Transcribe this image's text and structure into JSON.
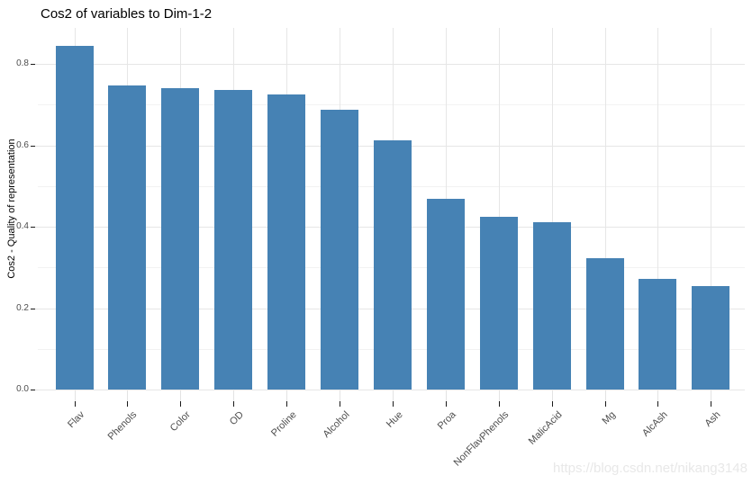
{
  "watermark": "https://blog.csdn.net/nikang3148",
  "chart_data": {
    "type": "bar",
    "title": "Cos2 of variables to Dim-1-2",
    "categories": [
      "Flav",
      "Phenols",
      "Color",
      "OD",
      "Proline",
      "Alcohol",
      "Hue",
      "Proa",
      "NonFlavPhenols",
      "MalicAcid",
      "Mg",
      "AlcAsh",
      "Ash"
    ],
    "values": [
      0.844,
      0.748,
      0.74,
      0.735,
      0.724,
      0.687,
      0.613,
      0.468,
      0.424,
      0.411,
      0.323,
      0.272,
      0.254
    ],
    "xlabel": "",
    "ylabel": "Cos2 - Quality of representation",
    "ylim": [
      0,
      0.888
    ],
    "ytick_values": [
      0.0,
      0.2,
      0.4,
      0.6,
      0.8
    ],
    "ytick_labels": [
      "0.0",
      "0.2",
      "0.4",
      "0.6",
      "0.8"
    ],
    "minor_gridlines": [
      0.1,
      0.3,
      0.5,
      0.7
    ],
    "grid": "horizontal major+minor, vertical major at each category",
    "legend": "none",
    "bar_orientation": "vertical",
    "x_label_rotation_deg": 45
  },
  "colors": {
    "bar_fill": "#4682B4",
    "grid_major": "#E6E6E6",
    "grid_minor": "#F2F2F2",
    "axis_text": "#4D4D4D",
    "tick_mark": "#1A1A1A",
    "tick_stem": "#E3E3E3",
    "title_text": "#000000",
    "watermark": "#E8E8E8"
  }
}
